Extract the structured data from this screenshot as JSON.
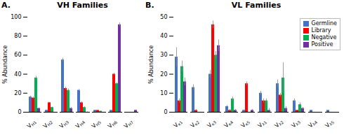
{
  "chart_data": [
    {
      "type": "bar",
      "title": "VH Families",
      "annotations": [
        "A."
      ],
      "y_label": "% Abundance",
      "categories": [
        "VH1",
        "VH2",
        "VH3",
        "VH4",
        "VH5",
        "VH6",
        "VH7"
      ],
      "series": [
        {
          "name": "Germline",
          "color": "#4472C4",
          "values": [
            16,
            2,
            55,
            23,
            2,
            2,
            0
          ],
          "errors": [
            1.0,
            0.5,
            2.0,
            1.0,
            0.3,
            0.3,
            0
          ]
        },
        {
          "name": "Library",
          "color": "#FF0000",
          "values": [
            15,
            10,
            25,
            10,
            2,
            40,
            0
          ],
          "errors": [
            1.0,
            0.5,
            1.5,
            1.0,
            0.3,
            1.0,
            0
          ]
        },
        {
          "name": "Negative",
          "color": "#00B050",
          "values": [
            36,
            5,
            23,
            5,
            1,
            30,
            0
          ],
          "errors": [
            2.0,
            0.5,
            1.5,
            1.0,
            0.3,
            1.0,
            0
          ]
        },
        {
          "name": "Positive",
          "color": "#7030A0",
          "values": [
            4,
            0,
            4,
            0,
            0,
            92,
            2
          ],
          "errors": [
            0.5,
            0,
            1.0,
            0.5,
            0,
            2.0,
            0.5
          ]
        }
      ],
      "ylim": [
        0,
        100
      ],
      "yticks": [
        0,
        20,
        40,
        60,
        80,
        100
      ],
      "grid": false
    },
    {
      "type": "bar",
      "title": "VL Families",
      "annotations": [
        "B."
      ],
      "y_label": "% Abundance",
      "categories": [
        "Vκ1",
        "Vκ2",
        "Vκ3",
        "Vκ4",
        "Vκ5",
        "Vλ1",
        "Vλ2",
        "Vλ3",
        "Vλ4",
        "Vλ5"
      ],
      "series": [
        {
          "name": "Germline",
          "color": "#4472C4",
          "values": [
            29,
            13,
            20,
            3,
            1,
            10,
            15,
            6,
            1,
            1
          ],
          "errors": [
            5,
            1.5,
            2,
            0.5,
            0.3,
            1,
            2,
            1,
            0,
            0
          ]
        },
        {
          "name": "Library",
          "color": "#FF0000",
          "values": [
            6,
            1,
            46,
            1,
            15,
            6,
            9,
            1,
            0,
            0
          ],
          "errors": [
            1,
            0.5,
            2,
            0.5,
            1.0,
            1,
            1,
            0,
            0,
            0
          ]
        },
        {
          "name": "Negative",
          "color": "#00B050",
          "values": [
            24,
            0,
            30,
            7,
            0,
            6,
            18,
            4,
            0,
            0
          ],
          "errors": [
            3,
            0,
            2,
            1.0,
            0,
            1,
            8,
            1,
            0,
            0
          ]
        },
        {
          "name": "Positive",
          "color": "#7030A0",
          "values": [
            16,
            0,
            35,
            1,
            1,
            1,
            2,
            2,
            0,
            0
          ],
          "errors": [
            2,
            0,
            3,
            0.5,
            0.5,
            1,
            1,
            0.5,
            0,
            0
          ]
        }
      ],
      "ylim": [
        0,
        50
      ],
      "yticks": [
        0,
        10,
        20,
        30,
        40,
        50
      ],
      "grid": false,
      "legend": "upper right"
    }
  ]
}
